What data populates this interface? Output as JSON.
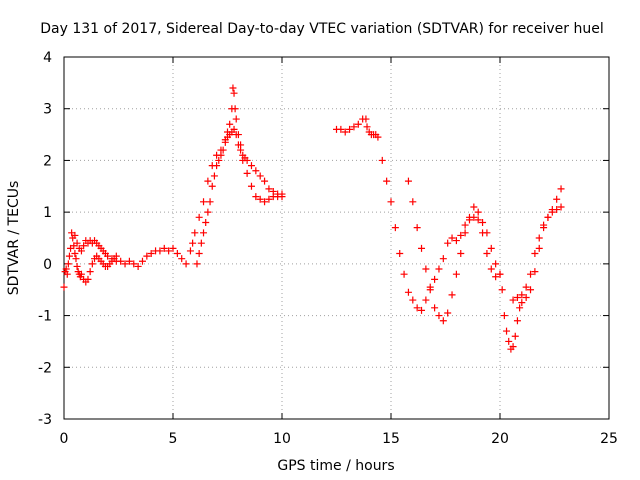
{
  "chart_data": {
    "type": "scatter",
    "title": "Day 131 of 2017, Sidereal Day-to-day VTEC variation (SDTVAR) for receiver huel",
    "xlabel": "GPS time / hours",
    "ylabel": "SDTVAR / TECUs",
    "xlim": [
      0,
      25
    ],
    "ylim": [
      -3,
      4
    ],
    "xticks": [
      0,
      5,
      10,
      15,
      20,
      25
    ],
    "yticks": [
      -3,
      -2,
      -1,
      0,
      1,
      2,
      3,
      4
    ],
    "grid": true,
    "marker": "plus",
    "series": [
      {
        "name": "SDTVAR",
        "color": "#ff0000",
        "x": [
          0.0,
          0.05,
          0.1,
          0.15,
          0.2,
          0.25,
          0.3,
          0.35,
          0.4,
          0.45,
          0.5,
          0.55,
          0.6,
          0.65,
          0.7,
          0.75,
          0.8,
          0.9,
          1.0,
          1.1,
          1.2,
          1.3,
          1.4,
          1.5,
          1.6,
          1.7,
          1.8,
          1.9,
          2.0,
          2.1,
          2.2,
          2.3,
          2.4,
          0.5,
          0.6,
          0.7,
          0.8,
          0.9,
          1.0,
          1.1,
          1.2,
          1.3,
          1.4,
          1.5,
          1.6,
          1.7,
          1.8,
          1.9,
          2.0,
          2.2,
          2.4,
          2.6,
          2.8,
          3.0,
          3.2,
          3.4,
          3.6,
          3.8,
          4.0,
          4.2,
          4.4,
          4.6,
          4.8,
          5.0,
          5.2,
          5.4,
          5.6,
          5.8,
          5.9,
          6.0,
          6.2,
          6.4,
          6.6,
          6.8,
          7.0,
          7.2,
          7.4,
          7.5,
          7.6,
          7.7,
          7.75,
          7.8,
          7.85,
          7.9,
          8.0,
          8.1,
          8.2,
          8.4,
          8.6,
          8.8,
          9.0,
          9.2,
          9.4,
          9.6,
          9.8,
          10.0,
          6.1,
          6.2,
          6.3,
          6.4,
          6.5,
          6.6,
          6.7,
          6.8,
          6.9,
          7.0,
          7.1,
          7.2,
          7.3,
          7.4,
          7.5,
          7.6,
          7.7,
          7.8,
          7.9,
          8.0,
          8.1,
          8.2,
          8.3,
          8.4,
          8.6,
          8.8,
          9.0,
          9.2,
          9.4,
          9.6,
          9.8,
          10.0,
          12.5,
          12.7,
          12.9,
          13.1,
          13.3,
          13.5,
          13.7,
          13.85,
          13.9,
          14.0,
          14.1,
          14.2,
          14.3,
          14.4,
          14.6,
          14.8,
          15.0,
          15.2,
          15.4,
          15.6,
          15.8,
          16.0,
          16.2,
          16.4,
          16.6,
          16.8,
          17.0,
          17.2,
          17.4,
          17.6,
          17.8,
          18.0,
          18.2,
          18.4,
          18.6,
          18.8,
          19.0,
          19.2,
          19.4,
          19.6,
          19.8,
          20.0,
          15.8,
          16.0,
          16.2,
          16.4,
          16.6,
          16.8,
          17.0,
          17.2,
          17.4,
          17.6,
          17.8,
          18.0,
          18.2,
          18.4,
          18.6,
          18.8,
          19.0,
          19.2,
          19.4,
          19.6,
          19.8,
          20.0,
          20.1,
          20.2,
          20.3,
          20.4,
          20.5,
          20.6,
          20.7,
          20.8,
          20.9,
          21.0,
          21.2,
          21.4,
          21.6,
          21.8,
          22.0,
          22.2,
          22.4,
          22.6,
          22.8,
          20.6,
          20.8,
          21.0,
          21.2,
          21.4,
          21.6,
          21.8,
          22.0,
          22.2,
          22.4,
          22.6,
          22.8
        ],
        "y": [
          -0.45,
          -0.15,
          -0.1,
          -0.2,
          0.0,
          0.15,
          0.3,
          0.6,
          0.5,
          0.35,
          0.2,
          0.1,
          -0.05,
          -0.15,
          -0.2,
          -0.25,
          -0.2,
          -0.3,
          -0.35,
          -0.3,
          -0.15,
          0.0,
          0.1,
          0.15,
          0.1,
          0.05,
          0.0,
          -0.05,
          -0.05,
          0.0,
          0.05,
          0.1,
          0.15,
          0.55,
          0.4,
          0.3,
          0.25,
          0.35,
          0.45,
          0.4,
          0.45,
          0.4,
          0.45,
          0.4,
          0.35,
          0.3,
          0.25,
          0.2,
          0.15,
          0.1,
          0.05,
          0.05,
          0.0,
          0.05,
          0.0,
          -0.05,
          0.05,
          0.15,
          0.2,
          0.25,
          0.25,
          0.3,
          0.25,
          0.3,
          0.2,
          0.1,
          0.0,
          0.25,
          0.4,
          0.6,
          0.9,
          1.2,
          1.6,
          1.9,
          2.1,
          2.2,
          2.4,
          2.55,
          2.7,
          3.0,
          3.4,
          3.3,
          3.0,
          2.8,
          2.5,
          2.3,
          2.0,
          1.75,
          1.5,
          1.3,
          1.25,
          1.2,
          1.25,
          1.3,
          1.3,
          1.35,
          0.0,
          0.2,
          0.4,
          0.6,
          0.8,
          1.0,
          1.2,
          1.5,
          1.7,
          1.9,
          2.0,
          2.1,
          2.2,
          2.35,
          2.45,
          2.5,
          2.55,
          2.6,
          2.5,
          2.3,
          2.2,
          2.1,
          2.05,
          2.0,
          1.9,
          1.8,
          1.7,
          1.6,
          1.45,
          1.4,
          1.35,
          1.3,
          2.6,
          2.6,
          2.55,
          2.6,
          2.65,
          2.7,
          2.8,
          2.8,
          2.65,
          2.55,
          2.5,
          2.5,
          2.5,
          2.45,
          2.0,
          1.6,
          1.2,
          0.7,
          0.2,
          -0.2,
          -0.55,
          -0.7,
          -0.85,
          -0.9,
          -0.7,
          -0.5,
          -0.3,
          -0.1,
          0.1,
          0.4,
          0.5,
          0.45,
          0.55,
          0.75,
          0.85,
          0.9,
          0.85,
          0.6,
          0.2,
          -0.1,
          -0.25,
          -0.2,
          1.6,
          1.2,
          0.7,
          0.3,
          -0.1,
          -0.45,
          -0.85,
          -1.0,
          -1.1,
          -0.95,
          -0.6,
          -0.2,
          0.2,
          0.6,
          0.9,
          1.1,
          1.0,
          0.8,
          0.6,
          0.3,
          0.0,
          -0.2,
          -0.5,
          -1.0,
          -1.3,
          -1.5,
          -1.65,
          -1.6,
          -1.4,
          -1.1,
          -0.85,
          -0.75,
          -0.65,
          -0.5,
          -0.15,
          0.3,
          0.7,
          0.9,
          1.0,
          1.05,
          1.1,
          -0.7,
          -0.65,
          -0.6,
          -0.45,
          -0.2,
          0.2,
          0.5,
          0.75,
          0.9,
          1.05,
          1.25,
          1.45
        ]
      }
    ]
  }
}
